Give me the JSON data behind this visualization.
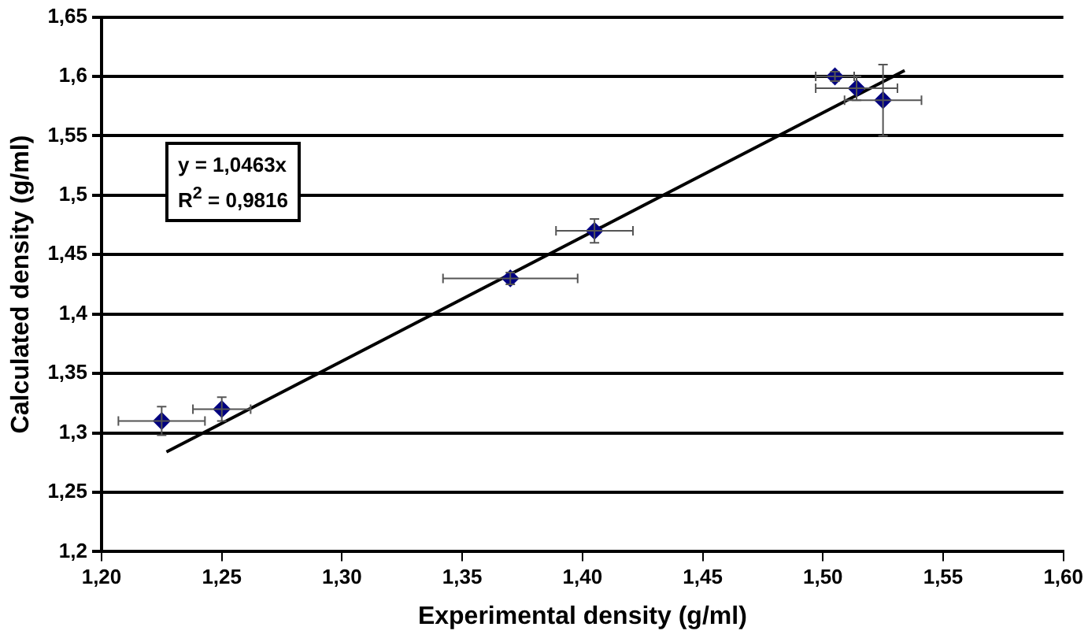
{
  "chart_data": {
    "type": "scatter",
    "xlabel": "Experimental density (g/ml)",
    "ylabel": "Calculated density (g/ml)",
    "xlim": [
      1.2,
      1.6
    ],
    "xticks": [
      {
        "value": 1.2,
        "label": "1,20"
      },
      {
        "value": 1.25,
        "label": "1,25"
      },
      {
        "value": 1.3,
        "label": "1,30"
      },
      {
        "value": 1.35,
        "label": "1,35"
      },
      {
        "value": 1.4,
        "label": "1,40"
      },
      {
        "value": 1.45,
        "label": "1,45"
      },
      {
        "value": 1.5,
        "label": "1,50"
      },
      {
        "value": 1.55,
        "label": "1,55"
      },
      {
        "value": 1.6,
        "label": "1,60"
      }
    ],
    "ylim": [
      1.2,
      1.65
    ],
    "yticks": [
      {
        "value": 1.2,
        "label": "1,2"
      },
      {
        "value": 1.25,
        "label": "1,25"
      },
      {
        "value": 1.3,
        "label": "1,3"
      },
      {
        "value": 1.35,
        "label": "1,35"
      },
      {
        "value": 1.4,
        "label": "1,4"
      },
      {
        "value": 1.45,
        "label": "1,45"
      },
      {
        "value": 1.5,
        "label": "1,5"
      },
      {
        "value": 1.55,
        "label": "1,55"
      },
      {
        "value": 1.6,
        "label": "1,6"
      },
      {
        "value": 1.65,
        "label": "1,65"
      }
    ],
    "grid": "y",
    "legend": false,
    "series": [
      {
        "marker": "diamond",
        "color": "#000080",
        "x": [
          1.225,
          1.25,
          1.37,
          1.405,
          1.505,
          1.514,
          1.525
        ],
        "values": [
          1.31,
          1.32,
          1.43,
          1.47,
          1.6,
          1.59,
          1.58
        ],
        "errors": [
          0.012,
          0.01,
          0.005,
          0.01,
          0.004,
          0.01,
          0.03
        ],
        "xerrors": [
          0.018,
          0.012,
          0.028,
          0.016,
          0.008,
          0.017,
          0.016
        ]
      },
      {
        "type": "line",
        "color": "#000000",
        "x": [
          1.227,
          1.534
        ],
        "values": [
          1.284,
          1.605
        ]
      }
    ],
    "annotations": [
      "y = 1,0463x\nR$^{2}$ = 0,9816"
    ]
  }
}
